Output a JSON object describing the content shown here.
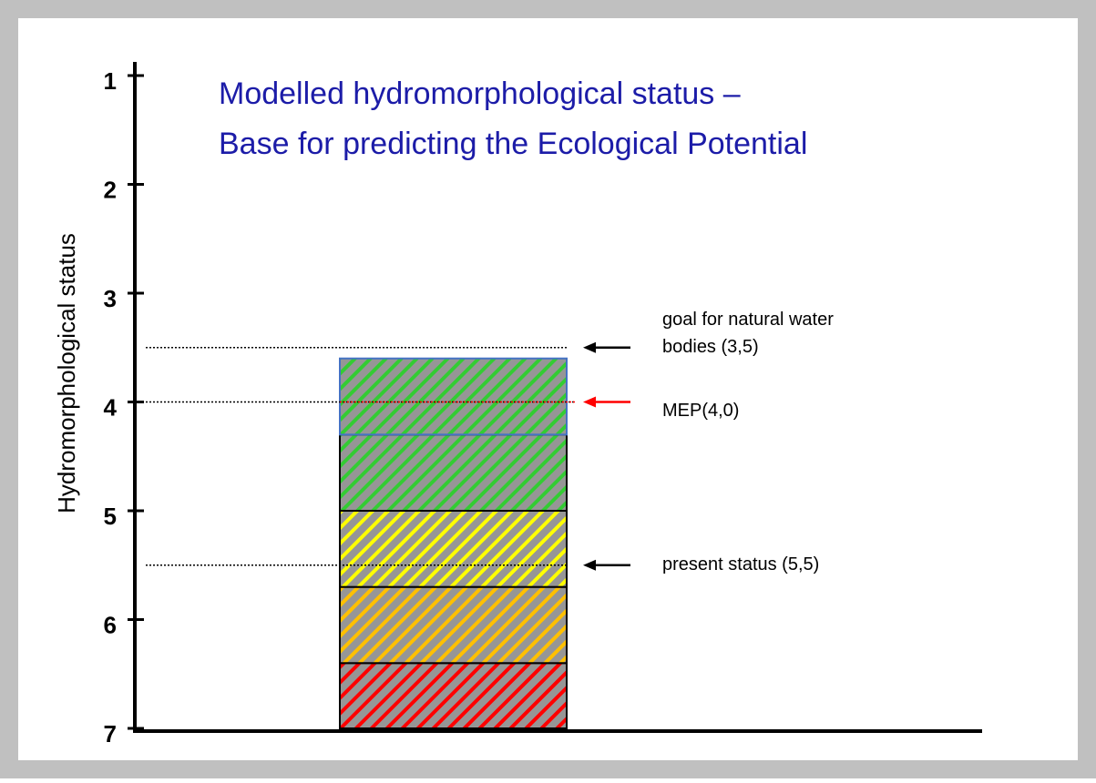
{
  "chart_data": {
    "type": "bar",
    "title": [
      "Modelled hydromorphological status –",
      "Base for predicting the Ecological Potential"
    ],
    "y_label": "Hydromorphological status",
    "ylim": [
      1,
      7
    ],
    "yticks": [
      1,
      2,
      3,
      4,
      5,
      6,
      7
    ],
    "y_inverted": true,
    "series": [
      {
        "color": "#ff0000",
        "values": [
          0.6
        ]
      },
      {
        "color": "#ffc000",
        "values": [
          0.7
        ]
      },
      {
        "color": "#ffff00",
        "values": [
          0.7
        ]
      },
      {
        "color": "#33cc33",
        "values": [
          0.7
        ]
      },
      {
        "color": "#33cc33",
        "border": "#4472c4",
        "values": [
          0.7
        ]
      }
    ],
    "reference_lines": [
      {
        "value": 3.5,
        "color": "#000000",
        "label": [
          "goal for natural water",
          "bodies (3,5)"
        ]
      },
      {
        "value": 4.0,
        "color": "#ff0000",
        "label": [
          "MEP(4,0)"
        ]
      },
      {
        "value": 5.5,
        "color": "#000000",
        "label": [
          "present status (5,5)"
        ]
      }
    ]
  }
}
